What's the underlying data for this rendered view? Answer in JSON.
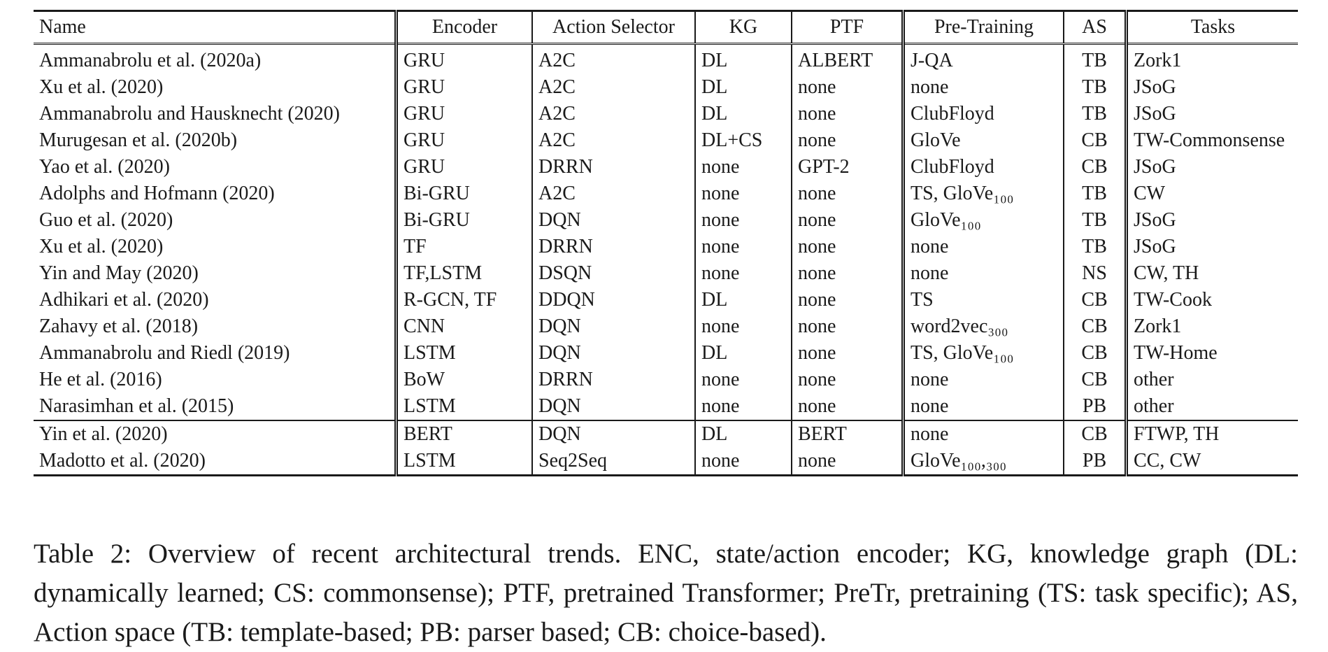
{
  "table": {
    "headers": [
      "Name",
      "Encoder",
      "Action Selector",
      "KG",
      "PTF",
      "Pre-Training",
      "AS",
      "Tasks"
    ],
    "group_a": [
      [
        "Ammanabrolu et al. (2020a)",
        "GRU",
        "A2C",
        "DL",
        "ALBERT",
        "J-QA",
        "TB",
        "Zork1"
      ],
      [
        "Xu et al. (2020)",
        "GRU",
        "A2C",
        "DL",
        "none",
        "none",
        "TB",
        "JSoG"
      ],
      [
        "Ammanabrolu and Hausknecht (2020)",
        "GRU",
        "A2C",
        "DL",
        "none",
        "ClubFloyd",
        "TB",
        "JSoG"
      ],
      [
        "Murugesan et al. (2020b)",
        "GRU",
        "A2C",
        "DL+CS",
        "none",
        "GloVe",
        "CB",
        "TW-Commonsense"
      ],
      [
        "Yao et al. (2020)",
        "GRU",
        "DRRN",
        "none",
        "GPT-2",
        "ClubFloyd",
        "CB",
        "JSoG"
      ],
      [
        "Adolphs and Hofmann (2020)",
        "Bi-GRU",
        "A2C",
        "none",
        "none",
        "TS, GloVe₁₀₀",
        "TB",
        "CW"
      ],
      [
        "Guo et al. (2020)",
        "Bi-GRU",
        "DQN",
        "none",
        "none",
        "GloVe₁₀₀",
        "TB",
        "JSoG"
      ],
      [
        "Xu et al. (2020)",
        "TF",
        "DRRN",
        "none",
        "none",
        "none",
        "TB",
        "JSoG"
      ],
      [
        "Yin and May (2020)",
        "TF,LSTM",
        "DSQN",
        "none",
        "none",
        "none",
        "NS",
        "CW, TH"
      ],
      [
        "Adhikari et al. (2020)",
        "R-GCN, TF",
        "DDQN",
        "DL",
        "none",
        "TS",
        "CB",
        "TW-Cook"
      ],
      [
        "Zahavy et al. (2018)",
        "CNN",
        "DQN",
        "none",
        "none",
        "word2vec₃₀₀",
        "CB",
        "Zork1"
      ],
      [
        "Ammanabrolu and Riedl (2019)",
        "LSTM",
        "DQN",
        "DL",
        "none",
        "TS, GloVe₁₀₀",
        "CB",
        "TW-Home"
      ],
      [
        "He et al. (2016)",
        "BoW",
        "DRRN",
        "none",
        "none",
        "none",
        "CB",
        "other"
      ],
      [
        "Narasimhan et al. (2015)",
        "LSTM",
        "DQN",
        "none",
        "none",
        "none",
        "PB",
        "other"
      ]
    ],
    "group_b": [
      [
        "Yin et al. (2020)",
        "BERT",
        "DQN",
        "DL",
        "BERT",
        "none",
        "CB",
        "FTWP, TH"
      ],
      [
        "Madotto et al. (2020)",
        "LSTM",
        "Seq2Seq",
        "none",
        "none",
        "GloVe₁₀₀,₃₀₀",
        "PB",
        "CC, CW"
      ]
    ]
  },
  "caption": "Table 2: Overview of recent architectural trends. ENC, state/action encoder; KG, knowledge graph (DL: dynamically learned; CS: commonsense); PTF, pretrained Transformer; PreTr, pretraining (TS: task specific); AS, Action space (TB: template-based; PB: parser based; CB: choice-based)."
}
